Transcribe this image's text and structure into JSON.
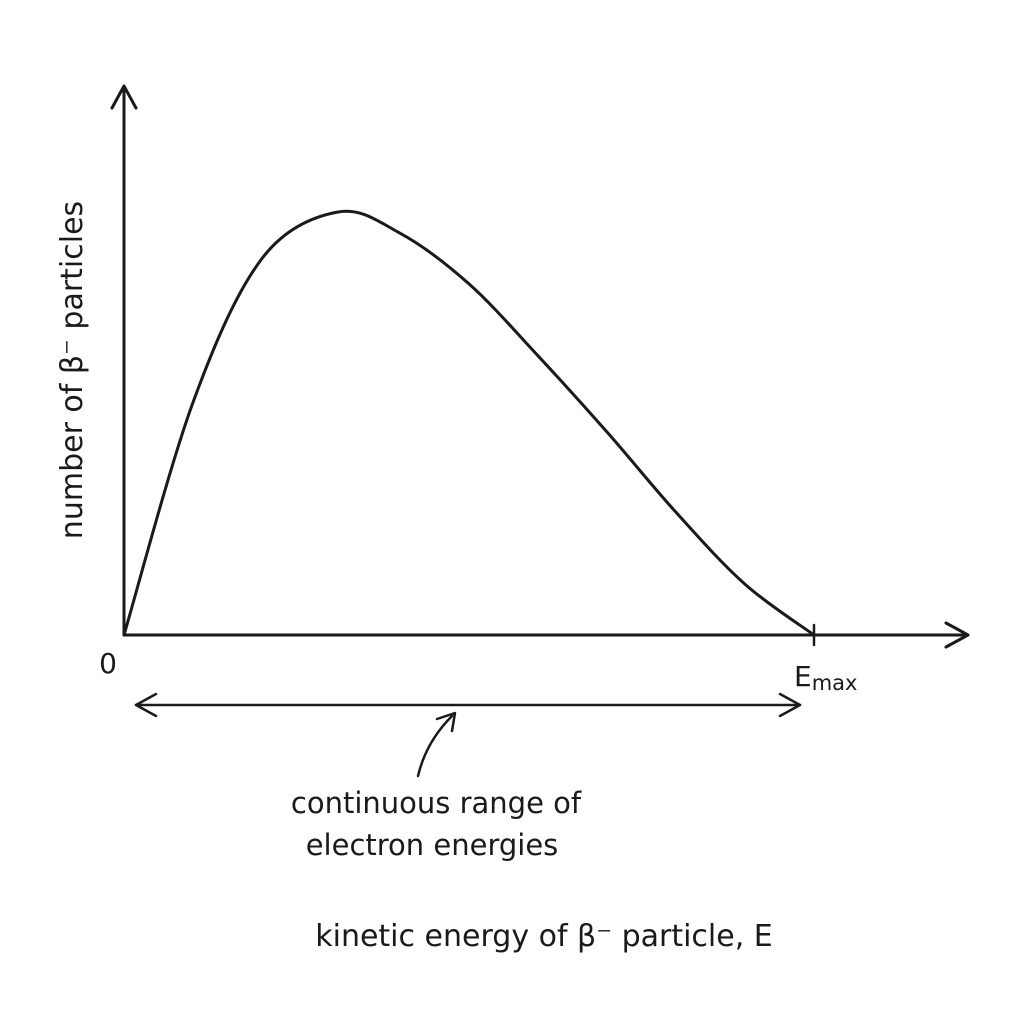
{
  "chart_data": {
    "type": "line",
    "title": "",
    "xlabel": "kinetic energy of β⁻ particle, E",
    "ylabel": "number of β⁻ particles",
    "xlim": [
      0,
      1.2
    ],
    "ylim": [
      0,
      1.0
    ],
    "grid": false,
    "legend": "none",
    "x_ticks": [
      {
        "value": 0,
        "label": "0"
      },
      {
        "value": 1,
        "label": "E",
        "subscript": "max"
      }
    ],
    "series": [
      {
        "values_note": "",
        "x": [
          0,
          0.1,
          0.2,
          0.31,
          0.4,
          0.5,
          0.6,
          0.7,
          0.8,
          0.9,
          1.0
        ],
        "y": [
          0,
          0.55,
          0.89,
          1.0,
          0.95,
          0.83,
          0.66,
          0.48,
          0.29,
          0.12,
          0
        ]
      }
    ],
    "annotations": [
      {
        "text_line1": "continuous range of",
        "text_line2": "electron energies",
        "span": [
          0,
          1
        ]
      }
    ]
  }
}
